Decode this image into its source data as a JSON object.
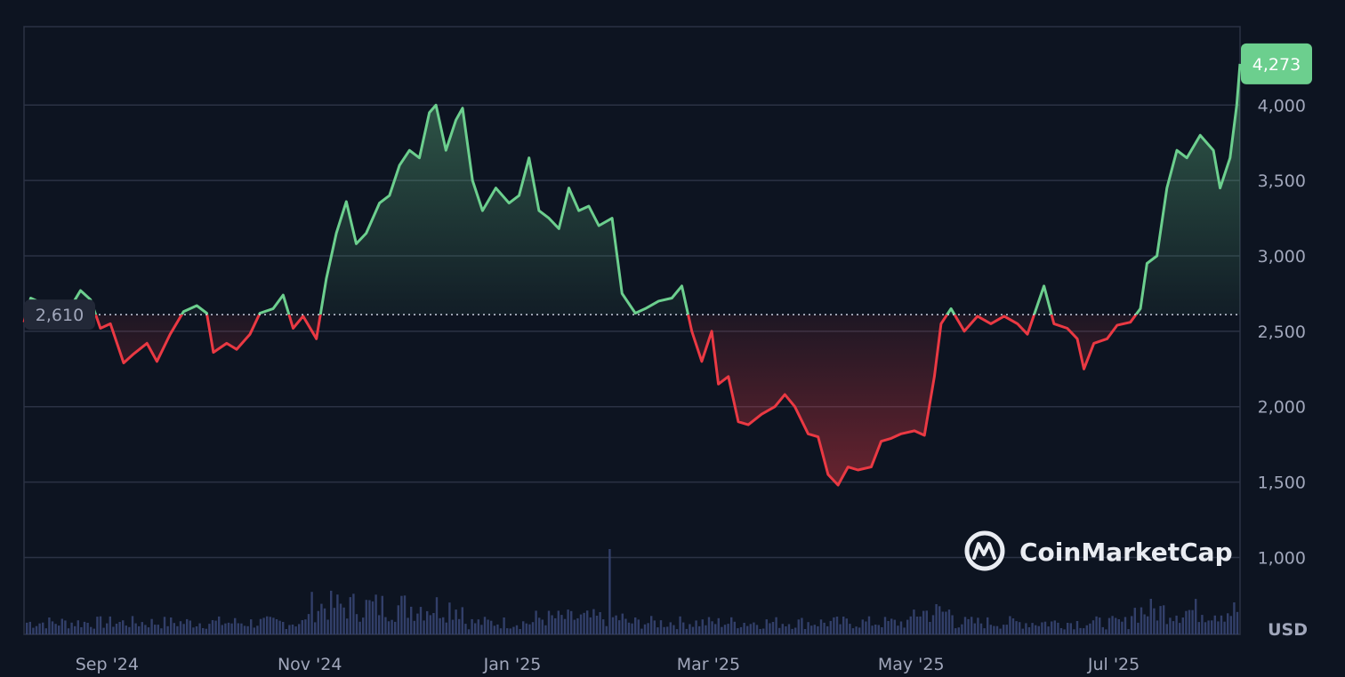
{
  "chart_data": {
    "type": "line",
    "title": "",
    "xlabel": "",
    "ylabel": "",
    "unit_label": "USD",
    "ylim": [
      490,
      4520
    ],
    "y_ticks": [
      1000,
      1500,
      2000,
      2500,
      3000,
      3500,
      4000
    ],
    "y_tick_labels": [
      "1,000",
      "1,500",
      "2,000",
      "2,500",
      "3,000",
      "3,500",
      "4,000"
    ],
    "x_range": [
      "2024-08-07",
      "2025-08-08"
    ],
    "x_ticks": [
      {
        "date": "2024-09-01",
        "label": "Sep '24"
      },
      {
        "date": "2024-11-01",
        "label": "Nov '24"
      },
      {
        "date": "2025-01-01",
        "label": "Jan '25"
      },
      {
        "date": "2025-03-01",
        "label": "Mar '25"
      },
      {
        "date": "2025-05-01",
        "label": "May '25"
      },
      {
        "date": "2025-07-01",
        "label": "Jul '25"
      }
    ],
    "reference": {
      "value": 2610,
      "label": "2,610"
    },
    "last": {
      "value": 4273,
      "label": "4,273"
    },
    "grid": true,
    "colors": {
      "up": "#6ccf8e",
      "down": "#ea3943",
      "grid": "#2b3244",
      "volume": "#3a4676",
      "background": "#0d1421",
      "reference_badge": "#222837",
      "last_badge": "#6ccf8e"
    },
    "series": [
      {
        "values": [
          {
            "x": "2024-08-07",
            "y": 2560
          },
          {
            "x": "2024-08-09",
            "y": 2720
          },
          {
            "x": "2024-08-12",
            "y": 2690
          },
          {
            "x": "2024-08-15",
            "y": 2620
          },
          {
            "x": "2024-08-18",
            "y": 2640
          },
          {
            "x": "2024-08-21",
            "y": 2660
          },
          {
            "x": "2024-08-24",
            "y": 2770
          },
          {
            "x": "2024-08-27",
            "y": 2710
          },
          {
            "x": "2024-08-30",
            "y": 2520
          },
          {
            "x": "2024-09-02",
            "y": 2550
          },
          {
            "x": "2024-09-06",
            "y": 2290
          },
          {
            "x": "2024-09-09",
            "y": 2350
          },
          {
            "x": "2024-09-13",
            "y": 2420
          },
          {
            "x": "2024-09-16",
            "y": 2300
          },
          {
            "x": "2024-09-20",
            "y": 2480
          },
          {
            "x": "2024-09-24",
            "y": 2630
          },
          {
            "x": "2024-09-28",
            "y": 2670
          },
          {
            "x": "2024-10-01",
            "y": 2620
          },
          {
            "x": "2024-10-03",
            "y": 2360
          },
          {
            "x": "2024-10-07",
            "y": 2420
          },
          {
            "x": "2024-10-10",
            "y": 2380
          },
          {
            "x": "2024-10-14",
            "y": 2480
          },
          {
            "x": "2024-10-17",
            "y": 2620
          },
          {
            "x": "2024-10-21",
            "y": 2650
          },
          {
            "x": "2024-10-24",
            "y": 2740
          },
          {
            "x": "2024-10-27",
            "y": 2520
          },
          {
            "x": "2024-10-30",
            "y": 2600
          },
          {
            "x": "2024-11-03",
            "y": 2450
          },
          {
            "x": "2024-11-06",
            "y": 2850
          },
          {
            "x": "2024-11-09",
            "y": 3150
          },
          {
            "x": "2024-11-12",
            "y": 3360
          },
          {
            "x": "2024-11-15",
            "y": 3080
          },
          {
            "x": "2024-11-18",
            "y": 3150
          },
          {
            "x": "2024-11-22",
            "y": 3350
          },
          {
            "x": "2024-11-25",
            "y": 3400
          },
          {
            "x": "2024-11-28",
            "y": 3600
          },
          {
            "x": "2024-12-01",
            "y": 3700
          },
          {
            "x": "2024-12-04",
            "y": 3650
          },
          {
            "x": "2024-12-07",
            "y": 3950
          },
          {
            "x": "2024-12-09",
            "y": 4000
          },
          {
            "x": "2024-12-12",
            "y": 3700
          },
          {
            "x": "2024-12-15",
            "y": 3900
          },
          {
            "x": "2024-12-17",
            "y": 3980
          },
          {
            "x": "2024-12-20",
            "y": 3500
          },
          {
            "x": "2024-12-23",
            "y": 3300
          },
          {
            "x": "2024-12-27",
            "y": 3450
          },
          {
            "x": "2024-12-31",
            "y": 3350
          },
          {
            "x": "2025-01-03",
            "y": 3400
          },
          {
            "x": "2025-01-06",
            "y": 3650
          },
          {
            "x": "2025-01-09",
            "y": 3300
          },
          {
            "x": "2025-01-12",
            "y": 3250
          },
          {
            "x": "2025-01-15",
            "y": 3180
          },
          {
            "x": "2025-01-18",
            "y": 3450
          },
          {
            "x": "2025-01-21",
            "y": 3300
          },
          {
            "x": "2025-01-24",
            "y": 3330
          },
          {
            "x": "2025-01-27",
            "y": 3200
          },
          {
            "x": "2025-01-31",
            "y": 3250
          },
          {
            "x": "2025-02-03",
            "y": 2750
          },
          {
            "x": "2025-02-07",
            "y": 2620
          },
          {
            "x": "2025-02-10",
            "y": 2650
          },
          {
            "x": "2025-02-14",
            "y": 2700
          },
          {
            "x": "2025-02-18",
            "y": 2720
          },
          {
            "x": "2025-02-21",
            "y": 2800
          },
          {
            "x": "2025-02-24",
            "y": 2500
          },
          {
            "x": "2025-02-27",
            "y": 2300
          },
          {
            "x": "2025-03-02",
            "y": 2500
          },
          {
            "x": "2025-03-04",
            "y": 2150
          },
          {
            "x": "2025-03-07",
            "y": 2200
          },
          {
            "x": "2025-03-10",
            "y": 1900
          },
          {
            "x": "2025-03-13",
            "y": 1880
          },
          {
            "x": "2025-03-17",
            "y": 1950
          },
          {
            "x": "2025-03-21",
            "y": 2000
          },
          {
            "x": "2025-03-24",
            "y": 2080
          },
          {
            "x": "2025-03-27",
            "y": 2000
          },
          {
            "x": "2025-03-31",
            "y": 1820
          },
          {
            "x": "2025-04-03",
            "y": 1800
          },
          {
            "x": "2025-04-06",
            "y": 1550
          },
          {
            "x": "2025-04-09",
            "y": 1480
          },
          {
            "x": "2025-04-12",
            "y": 1600
          },
          {
            "x": "2025-04-15",
            "y": 1580
          },
          {
            "x": "2025-04-19",
            "y": 1600
          },
          {
            "x": "2025-04-22",
            "y": 1770
          },
          {
            "x": "2025-04-25",
            "y": 1790
          },
          {
            "x": "2025-04-28",
            "y": 1820
          },
          {
            "x": "2025-05-02",
            "y": 1840
          },
          {
            "x": "2025-05-05",
            "y": 1810
          },
          {
            "x": "2025-05-08",
            "y": 2200
          },
          {
            "x": "2025-05-10",
            "y": 2550
          },
          {
            "x": "2025-05-13",
            "y": 2650
          },
          {
            "x": "2025-05-17",
            "y": 2500
          },
          {
            "x": "2025-05-21",
            "y": 2600
          },
          {
            "x": "2025-05-25",
            "y": 2550
          },
          {
            "x": "2025-05-29",
            "y": 2600
          },
          {
            "x": "2025-06-02",
            "y": 2550
          },
          {
            "x": "2025-06-05",
            "y": 2480
          },
          {
            "x": "2025-06-10",
            "y": 2800
          },
          {
            "x": "2025-06-13",
            "y": 2550
          },
          {
            "x": "2025-06-17",
            "y": 2520
          },
          {
            "x": "2025-06-20",
            "y": 2450
          },
          {
            "x": "2025-06-22",
            "y": 2250
          },
          {
            "x": "2025-06-25",
            "y": 2420
          },
          {
            "x": "2025-06-29",
            "y": 2450
          },
          {
            "x": "2025-07-02",
            "y": 2540
          },
          {
            "x": "2025-07-06",
            "y": 2560
          },
          {
            "x": "2025-07-09",
            "y": 2650
          },
          {
            "x": "2025-07-11",
            "y": 2950
          },
          {
            "x": "2025-07-14",
            "y": 3000
          },
          {
            "x": "2025-07-17",
            "y": 3450
          },
          {
            "x": "2025-07-20",
            "y": 3700
          },
          {
            "x": "2025-07-23",
            "y": 3650
          },
          {
            "x": "2025-07-27",
            "y": 3800
          },
          {
            "x": "2025-07-31",
            "y": 3700
          },
          {
            "x": "2025-08-02",
            "y": 3450
          },
          {
            "x": "2025-08-05",
            "y": 3650
          },
          {
            "x": "2025-08-07",
            "y": 4000
          },
          {
            "x": "2025-08-08",
            "y": 4273
          }
        ]
      }
    ],
    "watermark": "CoinMarketCap"
  }
}
